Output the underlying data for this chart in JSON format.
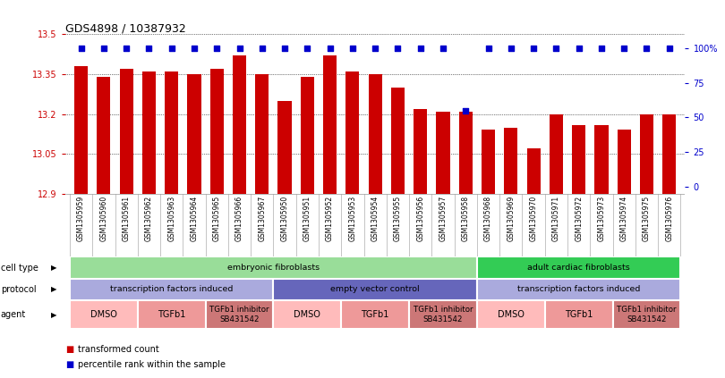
{
  "title": "GDS4898 / 10387932",
  "samples": [
    "GSM1305959",
    "GSM1305960",
    "GSM1305961",
    "GSM1305962",
    "GSM1305963",
    "GSM1305964",
    "GSM1305965",
    "GSM1305966",
    "GSM1305967",
    "GSM1305950",
    "GSM1305951",
    "GSM1305952",
    "GSM1305953",
    "GSM1305954",
    "GSM1305955",
    "GSM1305956",
    "GSM1305957",
    "GSM1305958",
    "GSM1305968",
    "GSM1305969",
    "GSM1305970",
    "GSM1305971",
    "GSM1305972",
    "GSM1305973",
    "GSM1305974",
    "GSM1305975",
    "GSM1305976"
  ],
  "bar_values": [
    13.38,
    13.34,
    13.37,
    13.36,
    13.36,
    13.35,
    13.37,
    13.42,
    13.35,
    13.25,
    13.34,
    13.42,
    13.36,
    13.35,
    13.3,
    13.22,
    13.21,
    13.21,
    13.14,
    13.15,
    13.07,
    13.2,
    13.16,
    13.16,
    13.14,
    13.2,
    13.2
  ],
  "percentile_values": [
    100,
    100,
    100,
    100,
    100,
    100,
    100,
    100,
    100,
    100,
    100,
    100,
    100,
    100,
    100,
    100,
    100,
    55,
    100,
    100,
    100,
    100,
    100,
    100,
    100,
    100,
    100
  ],
  "y_min": 12.9,
  "y_max": 13.5,
  "y_ticks": [
    12.9,
    13.05,
    13.2,
    13.35,
    13.5
  ],
  "y_tick_labels": [
    "12.9",
    "13.05",
    "13.2",
    "13.35",
    "13.5"
  ],
  "y2_ticks": [
    0,
    25,
    50,
    75,
    100
  ],
  "y2_tick_labels": [
    "0",
    "25",
    "50",
    "75",
    "100%"
  ],
  "bar_color": "#cc0000",
  "percentile_color": "#0000cc",
  "bar_width": 0.6,
  "cell_type_groups": [
    {
      "label": "embryonic fibroblasts",
      "start": 0,
      "end": 17,
      "color": "#99dd99"
    },
    {
      "label": "adult cardiac fibroblasts",
      "start": 18,
      "end": 26,
      "color": "#33cc55"
    }
  ],
  "protocol_groups": [
    {
      "label": "transcription factors induced",
      "start": 0,
      "end": 8,
      "color": "#aaaadd"
    },
    {
      "label": "empty vector control",
      "start": 9,
      "end": 17,
      "color": "#6666bb"
    },
    {
      "label": "transcription factors induced",
      "start": 18,
      "end": 26,
      "color": "#aaaadd"
    }
  ],
  "agent_groups": [
    {
      "label": "DMSO",
      "start": 0,
      "end": 2,
      "color": "#ffbbbb"
    },
    {
      "label": "TGFb1",
      "start": 3,
      "end": 5,
      "color": "#ee9999"
    },
    {
      "label": "TGFb1 inhibitor\nSB431542",
      "start": 6,
      "end": 8,
      "color": "#cc7777"
    },
    {
      "label": "DMSO",
      "start": 9,
      "end": 11,
      "color": "#ffbbbb"
    },
    {
      "label": "TGFb1",
      "start": 12,
      "end": 14,
      "color": "#ee9999"
    },
    {
      "label": "TGFb1 inhibitor\nSB431542",
      "start": 15,
      "end": 17,
      "color": "#cc7777"
    },
    {
      "label": "DMSO",
      "start": 18,
      "end": 20,
      "color": "#ffbbbb"
    },
    {
      "label": "TGFb1",
      "start": 21,
      "end": 23,
      "color": "#ee9999"
    },
    {
      "label": "TGFb1 inhibitor\nSB431542",
      "start": 24,
      "end": 26,
      "color": "#cc7777"
    }
  ],
  "row_labels": [
    "cell type",
    "protocol",
    "agent"
  ],
  "bg_color": "#ffffff",
  "tick_color_left": "#cc0000",
  "tick_color_right": "#0000cc",
  "grid_color": "#000000"
}
